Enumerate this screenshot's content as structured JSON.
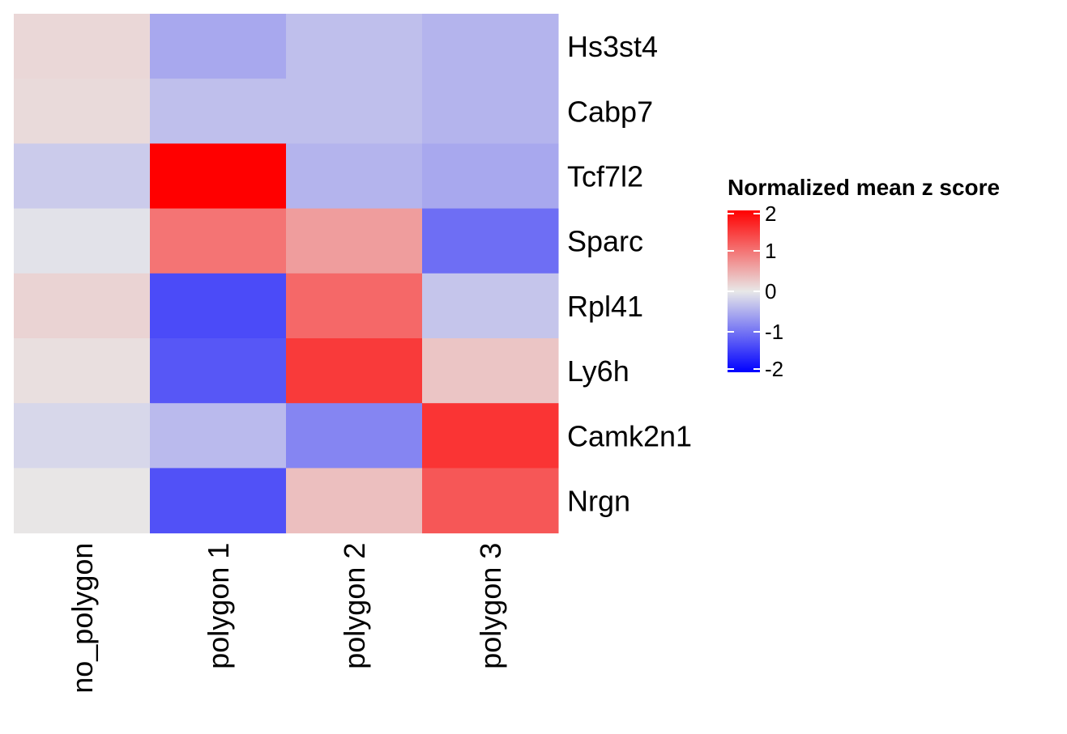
{
  "chart_data": {
    "type": "heatmap",
    "title": "",
    "xlabel": "",
    "ylabel": "",
    "columns": [
      "no_polygon",
      "polygon 1",
      "polygon 2",
      "polygon 3"
    ],
    "rows": [
      "Hs3st4",
      "Cabp7",
      "Tcf7l2",
      "Sparc",
      "Rpl41",
      "Ly6h",
      "Camk2n1",
      "Nrgn"
    ],
    "values": [
      [
        0.15,
        -0.55,
        -0.35,
        -0.45
      ],
      [
        0.12,
        -0.35,
        -0.35,
        -0.45
      ],
      [
        -0.25,
        2.0,
        -0.45,
        -0.55
      ],
      [
        -0.05,
        1.0,
        0.65,
        -1.05
      ],
      [
        0.18,
        -1.35,
        1.1,
        -0.3
      ],
      [
        0.08,
        -1.25,
        1.5,
        0.3
      ],
      [
        -0.15,
        -0.4,
        -0.85,
        1.55
      ],
      [
        0.02,
        -1.3,
        0.35,
        1.25
      ]
    ],
    "color_scale": {
      "low": "#0000ff",
      "mid": "#e8e8e8",
      "high": "#ff0000",
      "range": [
        -2,
        2
      ]
    },
    "legend": {
      "title": "Normalized mean z score",
      "ticks": [
        "2",
        "1",
        "0",
        "-1",
        "-2"
      ],
      "tick_values": [
        2,
        1,
        0,
        -1,
        -2
      ],
      "position": "right"
    },
    "grid": false
  }
}
